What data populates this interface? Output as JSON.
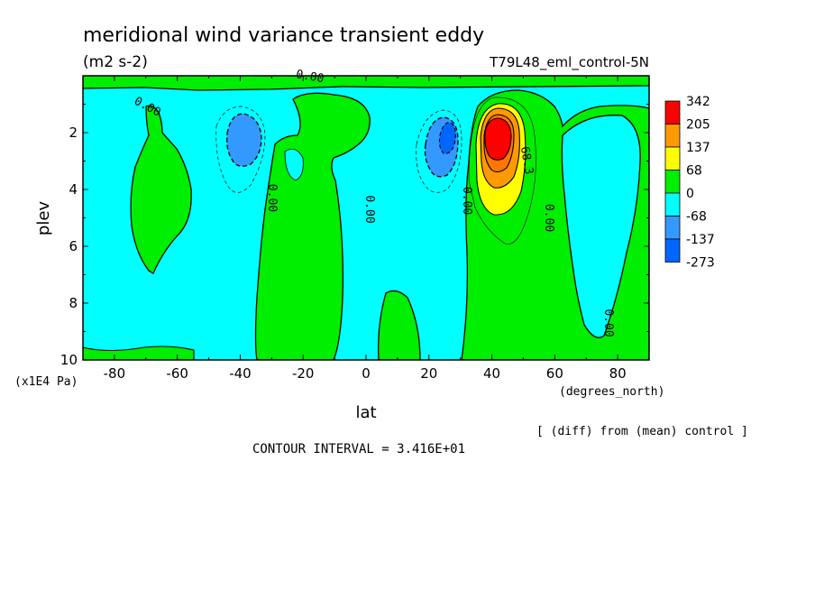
{
  "chart_data": {
    "type": "contour",
    "title": "meridional wind variance transient eddy",
    "units": "(m2 s-2)",
    "experiment": "T79L48_eml_control-5N",
    "xlabel": "lat",
    "x_units": "(degrees_north)",
    "ylabel": "plev",
    "y_units": "(x1E4 Pa)",
    "xlim": [
      -90,
      90
    ],
    "ylim": [
      10,
      0
    ],
    "x_ticks": [
      -80,
      -60,
      -40,
      -20,
      0,
      20,
      40,
      60,
      80
    ],
    "x_tick_labels": [
      "-80",
      "-60",
      "-40",
      "-20",
      "0",
      "20",
      "40",
      "60",
      "80"
    ],
    "y_ticks": [
      2,
      4,
      6,
      8,
      10
    ],
    "y_tick_labels": [
      "2",
      "4",
      "6",
      "8",
      "10"
    ],
    "note": "[ (diff) from (mean) control ]",
    "contour_interval_text": "CONTOUR INTERVAL = 3.416E+01",
    "colorbar": {
      "labels": [
        "342",
        "205",
        "137",
        "68",
        "0",
        "-68",
        "-137",
        "-273"
      ],
      "colors": [
        "#ff0000",
        "#ff9900",
        "#ffff00",
        "#00ee00",
        "#00ffff",
        "#3399ff",
        "#0066ff"
      ]
    },
    "contour_labels": [
      {
        "text": "0.00",
        "lat": -70,
        "plev": 1.2,
        "rotate": 28
      },
      {
        "text": "0.00",
        "lat": -18,
        "plev": 0.15,
        "rotate": 10
      },
      {
        "text": "0.00",
        "lat": -31,
        "plev": 4.3,
        "rotate": 90
      },
      {
        "text": "0.00",
        "lat": 0,
        "plev": 4.7,
        "rotate": 90
      },
      {
        "text": "0.00",
        "lat": 31,
        "plev": 4.4,
        "rotate": 90
      },
      {
        "text": "0.00",
        "lat": 57,
        "plev": 5.0,
        "rotate": 90
      },
      {
        "text": "0.00",
        "lat": 76,
        "plev": 8.7,
        "rotate": 90
      },
      {
        "text": "68.3",
        "lat": 50,
        "plev": 3.0,
        "rotate": 80
      }
    ],
    "positive_regions": [
      {
        "name": "jet-nh-core",
        "lat": 41,
        "plev": 2.3,
        "max_level": "342"
      },
      {
        "name": "south-tongue",
        "lat": -70,
        "plev": 4.0,
        "level": "0..68"
      },
      {
        "name": "central-band",
        "lat": -10,
        "plev": 5.5,
        "level": "0..68"
      },
      {
        "name": "nh-extratropics",
        "lat": 60,
        "plev": 6.0,
        "level": "0..68"
      }
    ],
    "negative_regions": [
      {
        "name": "sh-minimum",
        "lat": -38,
        "plev": 2.3,
        "level": "-68..-137"
      },
      {
        "name": "nh-minimum",
        "lat": 26,
        "plev": 2.3,
        "level": "-137..-273"
      }
    ]
  }
}
